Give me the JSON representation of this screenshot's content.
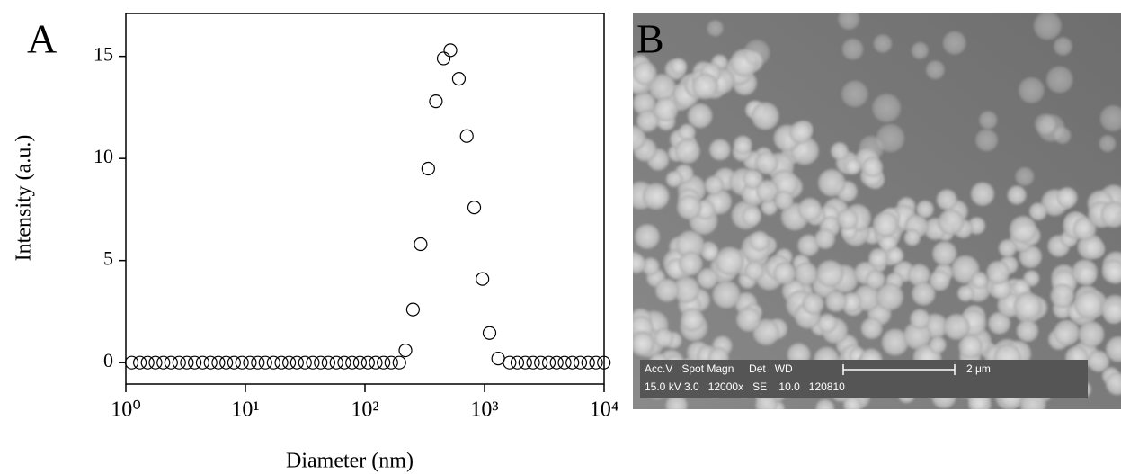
{
  "chart_data": {
    "type": "scatter",
    "panel_label": "A",
    "x_label": "Diameter (nm)",
    "y_label": "Intensity (a.u.)",
    "x": [
      1.12,
      1.31,
      1.52,
      1.77,
      2.06,
      2.39,
      2.79,
      3.24,
      3.77,
      4.39,
      5.11,
      5.94,
      6.91,
      8.04,
      9.36,
      10.9,
      12.7,
      14.7,
      17.2,
      20.0,
      23.2,
      27.0,
      31.5,
      36.6,
      42.6,
      49.5,
      57.7,
      67.1,
      78.1,
      90.8,
      106,
      123,
      143,
      166,
      194,
      218,
      252,
      292,
      338,
      392,
      455,
      518,
      610,
      710,
      820,
      960,
      1100,
      1300,
      1620,
      1880,
      2190,
      2550,
      2960,
      3450,
      4010,
      4670,
      5430,
      6320,
      7350,
      8560,
      9950
    ],
    "values": [
      0,
      0,
      0,
      0,
      0,
      0,
      0,
      0,
      0,
      0,
      0,
      0,
      0,
      0,
      0,
      0,
      0,
      0,
      0,
      0,
      0,
      0,
      0,
      0,
      0,
      0,
      0,
      0,
      0,
      0,
      0,
      0,
      0,
      0,
      0,
      0.6,
      2.6,
      5.8,
      9.5,
      12.8,
      14.9,
      15.3,
      13.9,
      11.1,
      7.6,
      4.1,
      1.45,
      0.2,
      0,
      0,
      0,
      0,
      0,
      0,
      0,
      0,
      0,
      0,
      0,
      0,
      0
    ],
    "color": "#000000",
    "xscale": "log",
    "xlim": [
      1,
      10000
    ],
    "xticks": [
      {
        "value": 1,
        "label": "10⁰"
      },
      {
        "value": 10,
        "label": "10¹"
      },
      {
        "value": 100,
        "label": "10²"
      },
      {
        "value": 1000,
        "label": "10³"
      },
      {
        "value": 10000,
        "label": "10⁴"
      }
    ],
    "ylim": [
      -1.05,
      17.1
    ],
    "yticks": [
      0,
      5,
      10,
      15
    ],
    "grid": false
  },
  "image_panel": {
    "panel_label": "B",
    "info_header": "Acc.V   Spot Magn     Det   WD",
    "info_values": "15.0 kV 3.0   12000x   SE    10.0   120810",
    "scale_label": "2 μm"
  }
}
